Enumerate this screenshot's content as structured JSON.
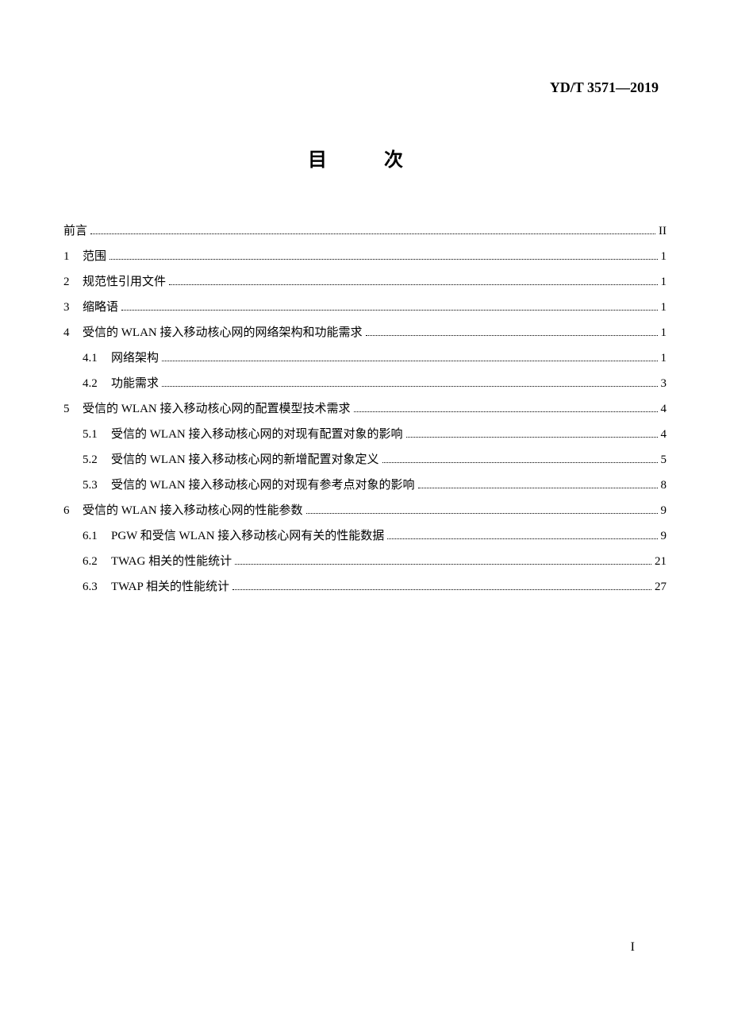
{
  "header": {
    "standard_number": "YD/T 3571—2019"
  },
  "title": "目　次",
  "toc": {
    "preface": {
      "label": "前言",
      "page": "II"
    },
    "entries": [
      {
        "num": "1",
        "label": "范围",
        "page": "1"
      },
      {
        "num": "2",
        "label": "规范性引用文件",
        "page": "1"
      },
      {
        "num": "3",
        "label": "缩略语",
        "page": "1"
      },
      {
        "num": "4",
        "label": "受信的 WLAN 接入移动核心网的网络架构和功能需求",
        "page": "1",
        "subs": [
          {
            "num": "4.1",
            "label": "网络架构",
            "page": "1"
          },
          {
            "num": "4.2",
            "label": "功能需求",
            "page": "3"
          }
        ]
      },
      {
        "num": "5",
        "label": "受信的 WLAN 接入移动核心网的配置模型技术需求",
        "page": "4",
        "subs": [
          {
            "num": "5.1",
            "label": "受信的 WLAN 接入移动核心网的对现有配置对象的影响",
            "page": "4"
          },
          {
            "num": "5.2",
            "label": "受信的 WLAN 接入移动核心网的新增配置对象定义",
            "page": "5"
          },
          {
            "num": "5.3",
            "label": "受信的 WLAN 接入移动核心网的对现有参考点对象的影响",
            "page": "8"
          }
        ]
      },
      {
        "num": "6",
        "label": "受信的 WLAN 接入移动核心网的性能参数",
        "page": "9",
        "subs": [
          {
            "num": "6.1",
            "label": "PGW 和受信 WLAN 接入移动核心网有关的性能数据",
            "page": "9"
          },
          {
            "num": "6.2",
            "label": "TWAG 相关的性能统计",
            "page": "21"
          },
          {
            "num": "6.3",
            "label": "TWAP 相关的性能统计",
            "page": "27"
          }
        ]
      }
    ]
  },
  "page_number": "I",
  "styling": {
    "text_color": "#000000",
    "background_color": "#ffffff",
    "body_fontsize": 15,
    "title_fontsize": 24,
    "header_fontsize": 18
  }
}
